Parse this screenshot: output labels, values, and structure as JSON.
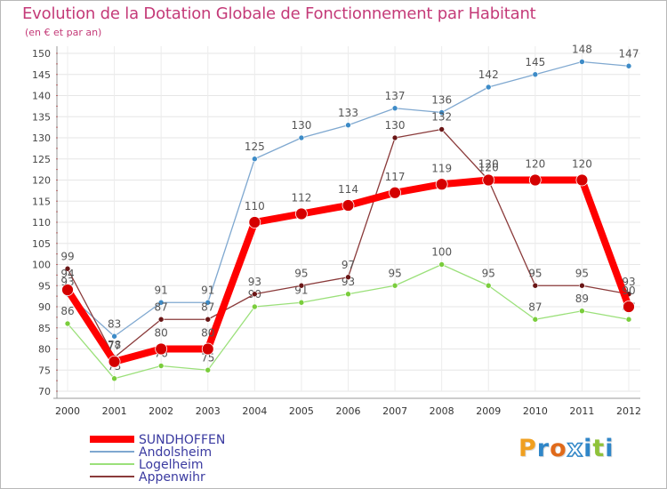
{
  "title": "Evolution de la Dotation Globale de Fonctionnement par Habitant",
  "subtitle": "(en € et par an)",
  "logo_text": "Proxiti",
  "logo_colors": [
    "#f0a020",
    "#2f86c8",
    "#e06a1a",
    "#ffffff",
    "#2f86c8",
    "#8fc23a",
    "#2f86c8"
  ],
  "chart_data": {
    "type": "line",
    "title": "Evolution de la Dotation Globale de Fonctionnement par Habitant",
    "subtitle": "(en € et par an)",
    "xlabel": "",
    "ylabel": "",
    "ylim": [
      70,
      150
    ],
    "yticks": [
      70,
      75,
      80,
      85,
      90,
      95,
      100,
      105,
      110,
      115,
      120,
      125,
      130,
      135,
      140,
      145,
      150
    ],
    "x": [
      "2000",
      "2001",
      "2002",
      "2003",
      "2004",
      "2005",
      "2006",
      "2007",
      "2008",
      "2009",
      "2010",
      "2011",
      "2012"
    ],
    "grid": true,
    "legend_position": "bottom-left",
    "series": [
      {
        "name": "SUNDHOFFEN",
        "color": "#ff0000",
        "marker": "#d40000",
        "values": [
          94,
          77,
          80,
          80,
          110,
          112,
          114,
          117,
          119,
          120,
          120,
          120,
          90
        ]
      },
      {
        "name": "Andolsheim",
        "color": "#7fa8d0",
        "marker": "#3d8bc7",
        "values": [
          93,
          83,
          91,
          91,
          125,
          130,
          133,
          137,
          136,
          142,
          145,
          148,
          147
        ]
      },
      {
        "name": "Logelheim",
        "color": "#9be07a",
        "marker": "#7acd3c",
        "values": [
          86,
          73,
          76,
          75,
          90,
          91,
          93,
          95,
          100,
          95,
          87,
          89,
          87
        ]
      },
      {
        "name": "Appenwihr",
        "color": "#8a3a3a",
        "marker": "#6a1616",
        "values": [
          99,
          78,
          87,
          87,
          93,
          95,
          97,
          130,
          132,
          120,
          95,
          95,
          93
        ]
      }
    ]
  }
}
